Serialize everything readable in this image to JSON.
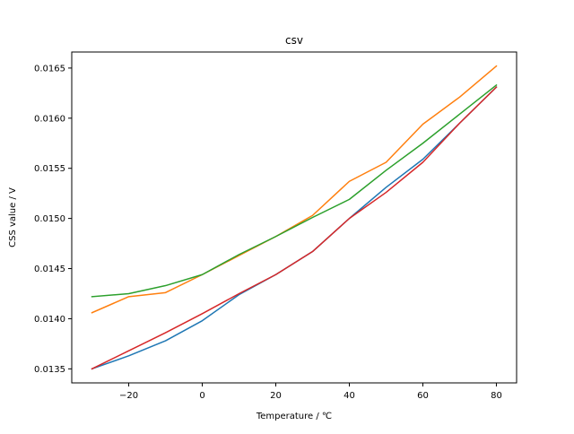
{
  "chart_data": {
    "type": "line",
    "title": "csv",
    "xlabel": "Temperature / ℃",
    "ylabel": "CSS value / V",
    "xlim": [
      -35.5,
      85.5
    ],
    "ylim": [
      0.01336,
      0.01666
    ],
    "xticks": [
      -20,
      0,
      20,
      40,
      60,
      80
    ],
    "xtick_labels": [
      "−20",
      "0",
      "20",
      "40",
      "60",
      "80"
    ],
    "yticks": [
      0.0135,
      0.014,
      0.0145,
      0.015,
      0.0155,
      0.016,
      0.0165
    ],
    "ytick_labels": [
      "0.0135",
      "0.0140",
      "0.0145",
      "0.0150",
      "0.0155",
      "0.0160",
      "0.0165"
    ],
    "grid": false,
    "legend": false,
    "x": [
      -30,
      -20,
      -10,
      0,
      10,
      20,
      30,
      40,
      50,
      60,
      70,
      80
    ],
    "series": [
      {
        "color": "#1f77b4",
        "values": [
          0.0135,
          0.01363,
          0.01378,
          0.01398,
          0.01424,
          0.01444,
          0.01467,
          0.015,
          0.01531,
          0.01559,
          0.01595,
          0.01631
        ]
      },
      {
        "color": "#ff7f0e",
        "values": [
          0.01406,
          0.01422,
          0.01426,
          0.01444,
          0.01463,
          0.01482,
          0.01503,
          0.01537,
          0.01556,
          0.01594,
          0.01621,
          0.01652
        ]
      },
      {
        "color": "#2ca02c",
        "values": [
          0.01422,
          0.01425,
          0.01433,
          0.01444,
          0.01464,
          0.01482,
          0.01501,
          0.01519,
          0.01548,
          0.01575,
          0.01604,
          0.01633
        ]
      },
      {
        "color": "#d62728",
        "values": [
          0.0135,
          0.01368,
          0.01386,
          0.01405,
          0.01425,
          0.01444,
          0.01467,
          0.015,
          0.01526,
          0.01556,
          0.01595,
          0.01631
        ]
      }
    ]
  }
}
